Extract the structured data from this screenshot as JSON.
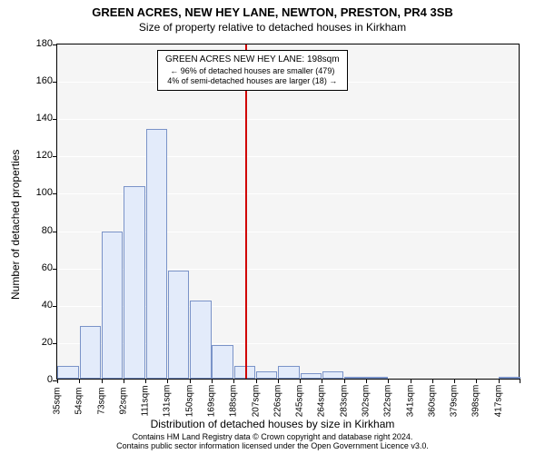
{
  "titles": {
    "line1": "GREEN ACRES, NEW HEY LANE, NEWTON, PRESTON, PR4 3SB",
    "line2": "Size of property relative to detached houses in Kirkham"
  },
  "chart": {
    "type": "histogram",
    "background_color": "#f5f5f5",
    "grid_color": "#ffffff",
    "border_color": "#000000",
    "bar_fill": "#e3ebfa",
    "bar_border": "#7a93c8",
    "bar_border_width": 1,
    "ylabel": "Number of detached properties",
    "xlabel": "Distribution of detached houses by size in Kirkham",
    "label_fontsize": 12,
    "tick_fontsize": 11,
    "ylim": [
      0,
      180
    ],
    "ytick_step": 20,
    "categories": [
      "35sqm",
      "54sqm",
      "73sqm",
      "92sqm",
      "111sqm",
      "131sqm",
      "150sqm",
      "169sqm",
      "188sqm",
      "207sqm",
      "226sqm",
      "245sqm",
      "264sqm",
      "283sqm",
      "302sqm",
      "322sqm",
      "341sqm",
      "360sqm",
      "379sqm",
      "398sqm",
      "417sqm"
    ],
    "values": [
      7,
      28,
      79,
      103,
      134,
      58,
      42,
      18,
      7,
      4,
      7,
      3,
      4,
      1,
      1,
      0,
      0,
      0,
      0,
      0,
      1
    ],
    "bar_width": 0.96,
    "reference_line": {
      "x_value": 198,
      "color": "#d00000",
      "width": 2
    },
    "annotation": {
      "lines": [
        "GREEN ACRES NEW HEY LANE: 198sqm",
        "← 96% of detached houses are smaller (479)",
        "4% of semi-detached houses are larger (18) →"
      ],
      "fontsize": 10
    }
  },
  "footer": {
    "line1": "Contains HM Land Registry data © Crown copyright and database right 2024.",
    "line2": "Contains public sector information licensed under the Open Government Licence v3.0."
  }
}
